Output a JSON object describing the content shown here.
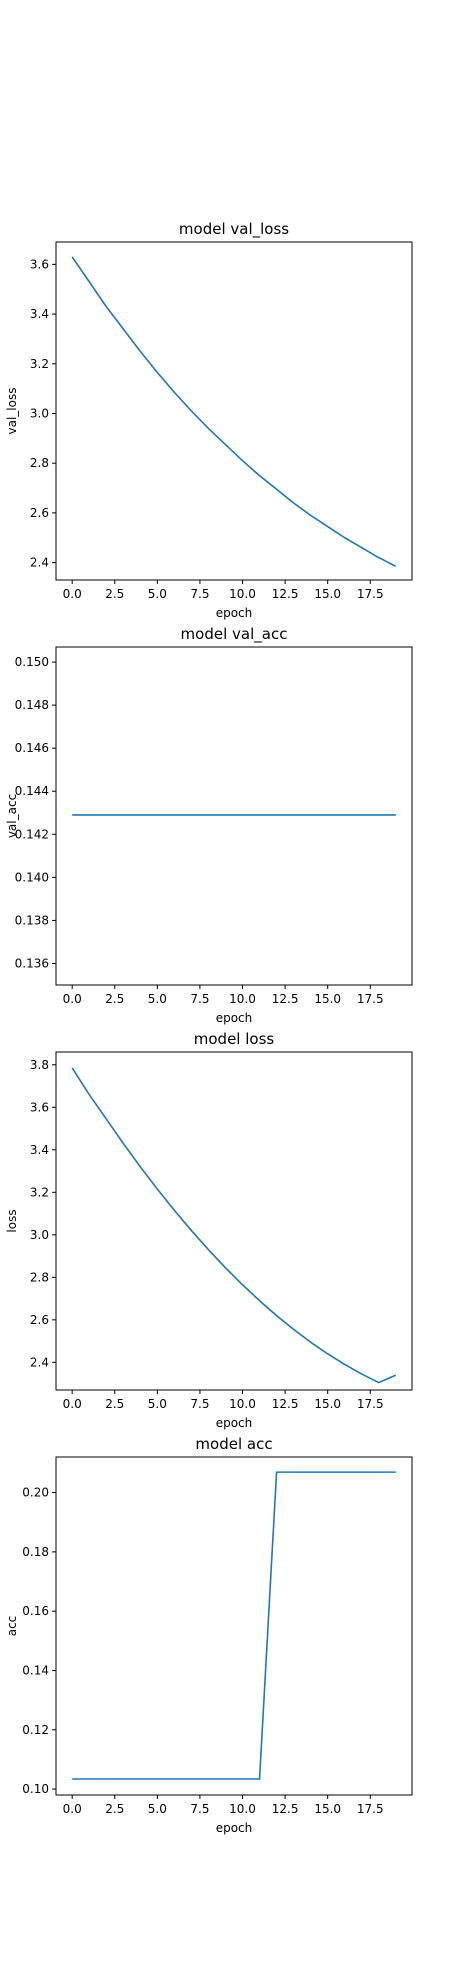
{
  "figure": {
    "background": "#ffffff",
    "line_color": "#1f77b4"
  },
  "chart_data": [
    {
      "type": "line",
      "title": "model val_loss",
      "xlabel": "epoch",
      "ylabel": "val_loss",
      "xlim": [
        -0.95,
        19.95
      ],
      "ylim": [
        2.33,
        3.69
      ],
      "xticks": [
        0,
        2.5,
        5,
        7.5,
        10,
        12.5,
        15,
        17.5
      ],
      "xtick_labels": [
        "0.0",
        "2.5",
        "5.0",
        "7.5",
        "10.0",
        "12.5",
        "15.0",
        "17.5"
      ],
      "yticks": [
        2.4,
        2.6,
        2.8,
        3.0,
        3.2,
        3.4,
        3.6
      ],
      "ytick_labels": [
        "2.4",
        "2.6",
        "2.8",
        "3.0",
        "3.2",
        "3.4",
        "3.6"
      ],
      "grid": false,
      "series": [
        {
          "x": [
            0,
            1,
            2,
            3,
            4,
            5,
            6,
            7,
            8,
            9,
            10,
            11,
            12,
            13,
            14,
            15,
            16,
            17,
            18,
            19
          ],
          "values": [
            3.63,
            3.53,
            3.43,
            3.34,
            3.25,
            3.165,
            3.085,
            3.01,
            2.94,
            2.875,
            2.81,
            2.75,
            2.695,
            2.64,
            2.59,
            2.545,
            2.5,
            2.46,
            2.42,
            2.385
          ]
        }
      ]
    },
    {
      "type": "line",
      "title": "model val_acc",
      "xlabel": "epoch",
      "ylabel": "val_acc",
      "xlim": [
        -0.95,
        19.95
      ],
      "ylim": [
        0.135,
        0.1507
      ],
      "xticks": [
        0,
        2.5,
        5,
        7.5,
        10,
        12.5,
        15,
        17.5
      ],
      "xtick_labels": [
        "0.0",
        "2.5",
        "5.0",
        "7.5",
        "10.0",
        "12.5",
        "15.0",
        "17.5"
      ],
      "yticks": [
        0.136,
        0.138,
        0.14,
        0.142,
        0.144,
        0.146,
        0.148,
        0.15
      ],
      "ytick_labels": [
        "0.136",
        "0.138",
        "0.140",
        "0.142",
        "0.144",
        "0.146",
        "0.148",
        "0.150"
      ],
      "grid": false,
      "series": [
        {
          "x": [
            0,
            1,
            2,
            3,
            4,
            5,
            6,
            7,
            8,
            9,
            10,
            11,
            12,
            13,
            14,
            15,
            16,
            17,
            18,
            19
          ],
          "values": [
            0.1429,
            0.1429,
            0.1429,
            0.1429,
            0.1429,
            0.1429,
            0.1429,
            0.1429,
            0.1429,
            0.1429,
            0.1429,
            0.1429,
            0.1429,
            0.1429,
            0.1429,
            0.1429,
            0.1429,
            0.1429,
            0.1429,
            0.1429
          ]
        }
      ]
    },
    {
      "type": "line",
      "title": "model loss",
      "xlabel": "epoch",
      "ylabel": "loss",
      "xlim": [
        -0.95,
        19.95
      ],
      "ylim": [
        2.27,
        3.86
      ],
      "xticks": [
        0,
        2.5,
        5,
        7.5,
        10,
        12.5,
        15,
        17.5
      ],
      "xtick_labels": [
        "0.0",
        "2.5",
        "5.0",
        "7.5",
        "10.0",
        "12.5",
        "15.0",
        "17.5"
      ],
      "yticks": [
        2.4,
        2.6,
        2.8,
        3.0,
        3.2,
        3.4,
        3.6,
        3.8
      ],
      "ytick_labels": [
        "2.4",
        "2.6",
        "2.8",
        "3.0",
        "3.2",
        "3.4",
        "3.6",
        "3.8"
      ],
      "grid": false,
      "series": [
        {
          "x": [
            0,
            1,
            2,
            3,
            4,
            5,
            6,
            7,
            8,
            9,
            10,
            11,
            12,
            13,
            14,
            15,
            16,
            17,
            18,
            19
          ],
          "values": [
            3.785,
            3.66,
            3.545,
            3.43,
            3.32,
            3.215,
            3.115,
            3.02,
            2.93,
            2.845,
            2.765,
            2.69,
            2.62,
            2.555,
            2.495,
            2.44,
            2.39,
            2.345,
            2.305,
            2.34
          ]
        }
      ]
    },
    {
      "type": "line",
      "title": "model acc",
      "xlabel": "epoch",
      "ylabel": "acc",
      "xlim": [
        -0.95,
        19.95
      ],
      "ylim": [
        0.098,
        0.212
      ],
      "xticks": [
        0,
        2.5,
        5,
        7.5,
        10,
        12.5,
        15,
        17.5
      ],
      "xtick_labels": [
        "0.0",
        "2.5",
        "5.0",
        "7.5",
        "10.0",
        "12.5",
        "15.0",
        "17.5"
      ],
      "yticks": [
        0.1,
        0.12,
        0.14,
        0.16,
        0.18,
        0.2
      ],
      "ytick_labels": [
        "0.10",
        "0.12",
        "0.14",
        "0.16",
        "0.18",
        "0.20"
      ],
      "grid": false,
      "series": [
        {
          "x": [
            0,
            1,
            2,
            3,
            4,
            5,
            6,
            7,
            8,
            9,
            10,
            11,
            12,
            13,
            14,
            15,
            16,
            17,
            18,
            19
          ],
          "values": [
            0.1034,
            0.1034,
            0.1034,
            0.1034,
            0.1034,
            0.1034,
            0.1034,
            0.1034,
            0.1034,
            0.1034,
            0.1034,
            0.1034,
            0.2069,
            0.2069,
            0.2069,
            0.2069,
            0.2069,
            0.2069,
            0.2069,
            0.2069
          ]
        }
      ]
    }
  ]
}
